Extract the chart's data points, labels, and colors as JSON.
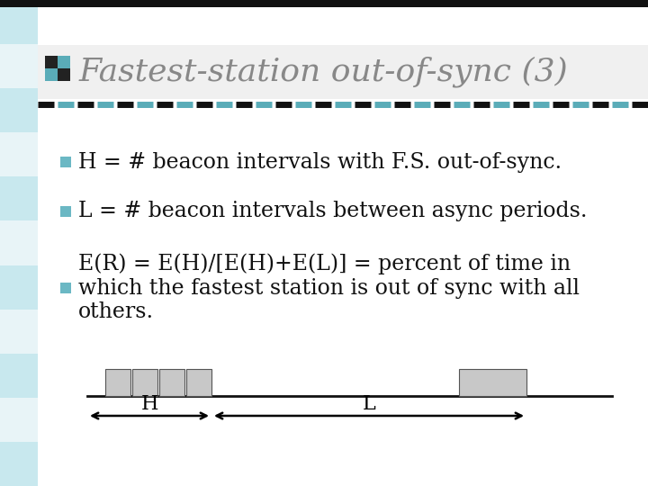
{
  "title": "Fastest-station out-of-sync (3)",
  "title_fontsize": 26,
  "title_color": "#888888",
  "background_color": "#ffffff",
  "bullet_color": "#6bb8c4",
  "bullet_items": [
    "H = # beacon intervals with F.S. out-of-sync.",
    "L = # beacon intervals between async periods.",
    "E(R) = E(H)/[E(H)+E(L)] = percent of time in\nwhich the fastest station is out of sync with all\nothers."
  ],
  "bullet_fontsize": 17,
  "text_color": "#111111",
  "left_stripe_light": "#c8e8ee",
  "left_stripe_dark": "#e8f4f7",
  "top_bar_color": "#111111",
  "sep_color_black": "#111111",
  "sep_color_teal": "#5aacb8",
  "diagram_box_color": "#c8c8c8",
  "diagram_line_color": "#111111"
}
